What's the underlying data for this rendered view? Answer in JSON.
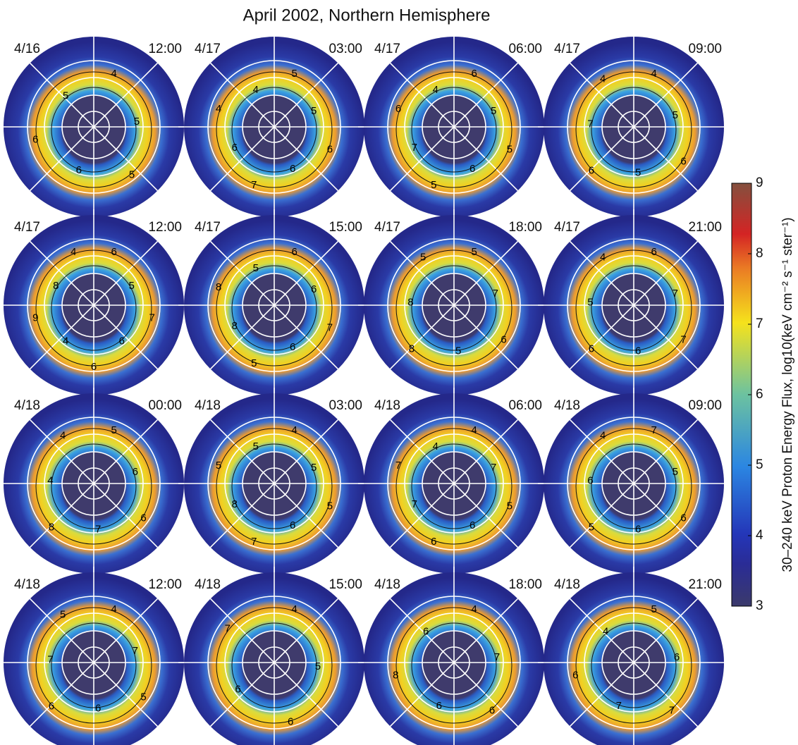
{
  "chart_data": {
    "type": "polar-panels",
    "title": "April 2002, Northern Hemisphere",
    "panels": [
      {
        "date": "4/16",
        "time": "12:00",
        "contour_labels": [
          4,
          5,
          5,
          6,
          6,
          5
        ]
      },
      {
        "date": "4/17",
        "time": "03:00",
        "contour_labels": [
          5,
          5,
          6,
          6,
          7,
          6,
          4,
          4
        ]
      },
      {
        "date": "4/17",
        "time": "06:00",
        "contour_labels": [
          6,
          5,
          5,
          6,
          5,
          7,
          6,
          4
        ]
      },
      {
        "date": "4/17",
        "time": "09:00",
        "contour_labels": [
          4,
          5,
          6,
          5,
          6,
          7,
          4
        ]
      },
      {
        "date": "4/17",
        "time": "12:00",
        "contour_labels": [
          6,
          5,
          7,
          6,
          6,
          4,
          9,
          8,
          4
        ]
      },
      {
        "date": "4/17",
        "time": "15:00",
        "contour_labels": [
          6,
          6,
          7,
          6,
          5,
          8,
          8,
          5
        ]
      },
      {
        "date": "4/17",
        "time": "18:00",
        "contour_labels": [
          5,
          7,
          6,
          5,
          8,
          8,
          5
        ]
      },
      {
        "date": "4/17",
        "time": "21:00",
        "contour_labels": [
          6,
          7,
          7,
          6,
          6,
          5,
          4
        ]
      },
      {
        "date": "4/18",
        "time": "00:00",
        "contour_labels": [
          5,
          6,
          6,
          7,
          8,
          4,
          4
        ]
      },
      {
        "date": "4/18",
        "time": "03:00",
        "contour_labels": [
          4,
          5,
          5,
          6,
          7,
          8,
          5,
          5
        ]
      },
      {
        "date": "4/18",
        "time": "06:00",
        "contour_labels": [
          4,
          7,
          5,
          6,
          6,
          7,
          7,
          4
        ]
      },
      {
        "date": "4/18",
        "time": "09:00",
        "contour_labels": [
          7,
          5,
          6,
          6,
          5,
          6,
          4
        ]
      },
      {
        "date": "4/18",
        "time": "12:00",
        "contour_labels": [
          4,
          7,
          5,
          6,
          6,
          7,
          5
        ]
      },
      {
        "date": "4/18",
        "time": "15:00",
        "contour_labels": [
          4,
          5,
          6,
          6,
          7
        ]
      },
      {
        "date": "4/18",
        "time": "18:00",
        "contour_labels": [
          4,
          7,
          6,
          6,
          8,
          6
        ]
      },
      {
        "date": "4/18",
        "time": "21:00",
        "contour_labels": [
          5,
          6,
          7,
          7,
          6,
          4
        ]
      }
    ],
    "colorbar": {
      "label": "30–240 keV Proton Energy Flux, log10(keV cm⁻² s⁻¹ ster⁻¹)",
      "lim": [
        3,
        9
      ],
      "ticks": [
        3,
        4,
        5,
        6,
        7,
        8,
        9
      ]
    }
  }
}
